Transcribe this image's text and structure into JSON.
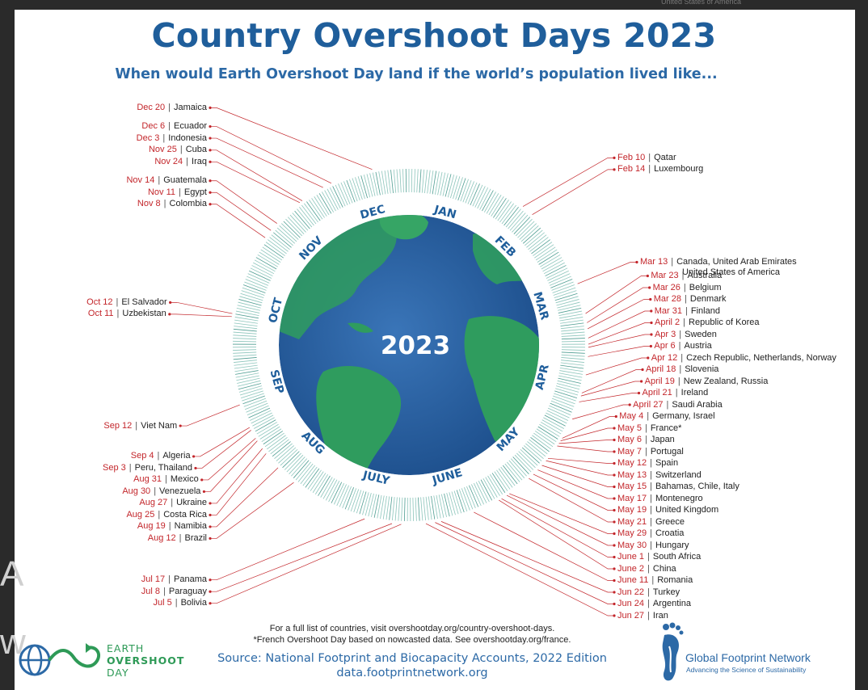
{
  "title": "Country Overshoot Days 2023",
  "subtitle": "When would Earth Overshoot Day land if the world’s population lived like...",
  "center_year": "2023",
  "months": [
    "JAN",
    "FEB",
    "MAR",
    "APR",
    "MAY",
    "JUNE",
    "JULY",
    "AUG",
    "SEP",
    "OCT",
    "NOV",
    "DEC"
  ],
  "chart_data": {
    "type": "radial-timeline",
    "title": "Country Overshoot Days 2023",
    "subtitle": "When would Earth Overshoot Day land if the world’s population lived like...",
    "year": 2023,
    "points": [
      {
        "date": "Feb 10",
        "country": "Qatar",
        "day": 41
      },
      {
        "date": "Feb 14",
        "country": "Luxembourg",
        "day": 45
      },
      {
        "date": "Mar 13",
        "country": "Canada, United Arab Emirates",
        "country2": "United States of America",
        "day": 72
      },
      {
        "date": "Mar 23",
        "country": "Australia",
        "day": 82
      },
      {
        "date": "Mar 26",
        "country": "Belgium",
        "day": 85
      },
      {
        "date": "Mar 28",
        "country": "Denmark",
        "day": 87
      },
      {
        "date": "Mar 31",
        "country": "Finland",
        "day": 90
      },
      {
        "date": "April 2",
        "country": "Republic of Korea",
        "day": 92
      },
      {
        "date": "Apr 3",
        "country": "Sweden",
        "day": 93
      },
      {
        "date": "Apr 6",
        "country": "Austria",
        "day": 96
      },
      {
        "date": "Apr 12",
        "country": "Czech Republic, Netherlands, Norway",
        "day": 102
      },
      {
        "date": "April 18",
        "country": "Slovenia",
        "day": 108
      },
      {
        "date": "April 19",
        "country": "New Zealand, Russia",
        "day": 109
      },
      {
        "date": "April 21",
        "country": "Ireland",
        "day": 111
      },
      {
        "date": "April 27",
        "country": "Saudi Arabia",
        "day": 117
      },
      {
        "date": "May 4",
        "country": "Germany, Israel",
        "day": 124
      },
      {
        "date": "May 5",
        "country": "France*",
        "day": 125
      },
      {
        "date": "May 6",
        "country": "Japan",
        "day": 126
      },
      {
        "date": "May 7",
        "country": "Portugal",
        "day": 127
      },
      {
        "date": "May 12",
        "country": "Spain",
        "day": 132
      },
      {
        "date": "May 13",
        "country": "Switzerland",
        "day": 133
      },
      {
        "date": "May 15",
        "country": "Bahamas, Chile, Italy",
        "day": 135
      },
      {
        "date": "May 17",
        "country": "Montenegro",
        "day": 137
      },
      {
        "date": "May 19",
        "country": "United Kingdom",
        "day": 139
      },
      {
        "date": "May 21",
        "country": "Greece",
        "day": 141
      },
      {
        "date": "May 29",
        "country": "Croatia",
        "day": 149
      },
      {
        "date": "May 30",
        "country": "Hungary",
        "day": 150
      },
      {
        "date": "June 1",
        "country": "South Africa",
        "day": 152
      },
      {
        "date": "June 2",
        "country": "China",
        "day": 153
      },
      {
        "date": "June 11",
        "country": "Romania",
        "day": 162
      },
      {
        "date": "Jun 22",
        "country": "Turkey",
        "day": 173
      },
      {
        "date": "Jun 24",
        "country": "Argentina",
        "day": 175
      },
      {
        "date": "Jun 27",
        "country": "Iran",
        "day": 178
      },
      {
        "date": "Jul 5",
        "country": "Bolivia",
        "day": 186
      },
      {
        "date": "Jul 8",
        "country": "Paraguay",
        "day": 189
      },
      {
        "date": "Jul 17",
        "country": "Panama",
        "day": 198
      },
      {
        "date": "Aug 12",
        "country": "Brazil",
        "day": 224
      },
      {
        "date": "Aug 19",
        "country": "Namibia",
        "day": 231
      },
      {
        "date": "Aug 25",
        "country": "Costa Rica",
        "day": 237
      },
      {
        "date": "Aug 27",
        "country": "Ukraine",
        "day": 239
      },
      {
        "date": "Aug 30",
        "country": "Venezuela",
        "day": 242
      },
      {
        "date": "Aug 31",
        "country": "Mexico",
        "day": 243
      },
      {
        "date": "Sep 3",
        "country": "Peru, Thailand",
        "day": 246
      },
      {
        "date": "Sep 4",
        "country": "Algeria",
        "day": 247
      },
      {
        "date": "Sep 12",
        "country": "Viet Nam",
        "day": 255
      },
      {
        "date": "Oct 11",
        "country": "Uzbekistan",
        "day": 284
      },
      {
        "date": "Oct 12",
        "country": "El Salvador",
        "day": 285
      },
      {
        "date": "Nov 8",
        "country": "Colombia",
        "day": 312
      },
      {
        "date": "Nov 11",
        "country": "Egypt",
        "day": 315
      },
      {
        "date": "Nov 14",
        "country": "Guatemala",
        "day": 318
      },
      {
        "date": "Nov 24",
        "country": "Iraq",
        "day": 328
      },
      {
        "date": "Nov 25",
        "country": "Cuba",
        "day": 329
      },
      {
        "date": "Dec 3",
        "country": "Indonesia",
        "day": 337
      },
      {
        "date": "Dec 6",
        "country": "Ecuador",
        "day": 340
      },
      {
        "date": "Dec 20",
        "country": "Jamaica",
        "day": 354
      }
    ]
  },
  "footer": {
    "note1": "For a full list of countries, visit overshootday.org/country-overshoot-days.",
    "note2": "*French Overshoot Day based on nowcasted data. See overshootday.org/france.",
    "source": "Source: National Footprint and Biocapacity Accounts, 2022 Edition",
    "source_url": "data.footprintnetwork.org"
  },
  "logos": {
    "earth_line1": "EARTH",
    "earth_line2": "OVERSHOOT",
    "earth_line3": "DAY",
    "gfn_name": "Global Footprint Network",
    "gfn_tagline": "Advancing the Science of Sustainability"
  },
  "background_fragments": {
    "top_right": "United States of America",
    "left_a": "A",
    "left_w": "w"
  },
  "colors": {
    "title": "#1f5e9b",
    "date_red": "#c3262b",
    "ring_teal": "#6fb3a8",
    "ocean": "#2a5f9e",
    "land": "#2f9c5e",
    "logo_green": "#2e9a57"
  }
}
